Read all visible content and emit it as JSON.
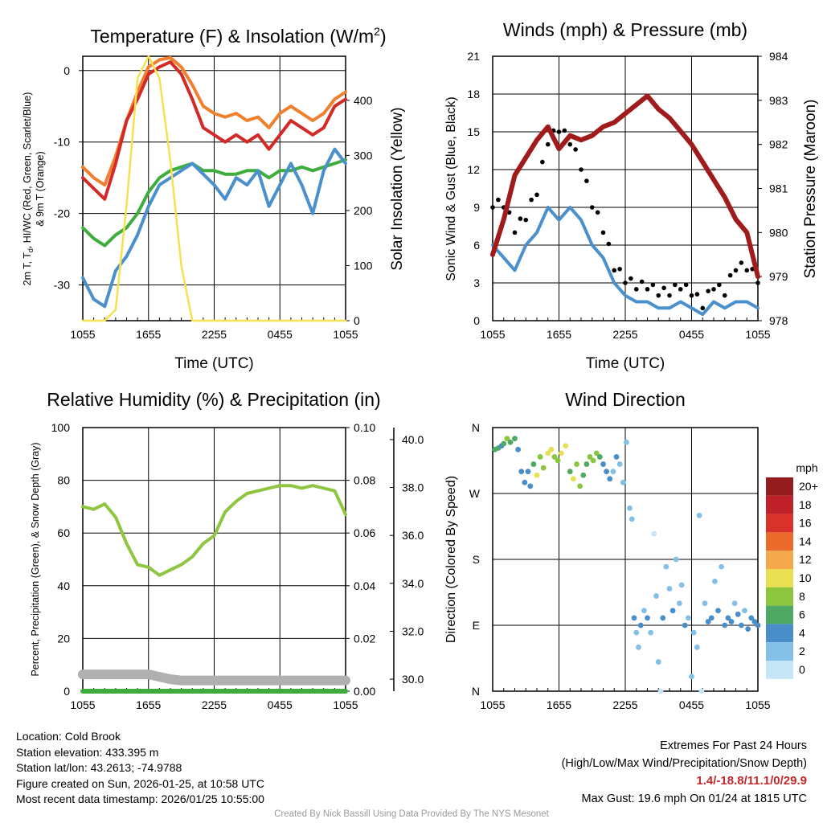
{
  "chart_data": [
    {
      "panel": "temperature",
      "type": "line",
      "title": "Temperature (F) & Insolation (W/m",
      "title_sup": "2",
      "title_end": ")",
      "xlabel": "Time (UTC)",
      "xticks": [
        "1055",
        "1655",
        "2255",
        "0455",
        "1055"
      ],
      "ylabel_left_lines": [
        "2m T, T",
        "d",
        ", HI/WC (Red, Green, Scarlet/Blue)",
        "& 9m T (Orange)"
      ],
      "ylabel_right": "Solar Insolation (Yellow)",
      "ylim": [
        -35,
        2
      ],
      "yticks": [
        0,
        -10,
        -20,
        -30
      ],
      "y2lim": [
        0,
        480
      ],
      "y2ticks": [
        0,
        100,
        200,
        300,
        400
      ],
      "x": [
        0,
        1,
        2,
        3,
        4,
        5,
        6,
        7,
        8,
        9,
        10,
        11,
        12,
        13,
        14,
        15,
        16,
        17,
        18,
        19,
        20,
        21,
        22,
        23,
        24
      ],
      "series": [
        {
          "name": "9m T",
          "color": "#f07f2e",
          "axis": "left",
          "values": [
            -13.5,
            -15,
            -16,
            -12,
            -7,
            -3,
            0.5,
            1.5,
            1.8,
            0.5,
            -2,
            -5,
            -6,
            -6.5,
            -6,
            -7,
            -6.5,
            -8,
            -6,
            -5,
            -6,
            -7,
            -6,
            -4,
            -3
          ]
        },
        {
          "name": "2m T",
          "color": "#d42a27",
          "axis": "left",
          "values": [
            -15,
            -16.5,
            -18,
            -13,
            -7,
            -4,
            -0.5,
            0.5,
            1.2,
            -0.5,
            -4,
            -8,
            -9,
            -10,
            -9,
            -10,
            -9,
            -11,
            -9,
            -7,
            -8,
            -9,
            -8,
            -5,
            -4
          ]
        },
        {
          "name": "Td",
          "color": "#3fac3e",
          "axis": "left",
          "values": [
            -22,
            -23.5,
            -24.5,
            -23,
            -22,
            -20,
            -17,
            -15,
            -14,
            -13.5,
            -13,
            -14,
            -14,
            -14.5,
            -14.5,
            -14,
            -14,
            -15,
            -14,
            -14,
            -13.5,
            -14,
            -13.5,
            -13,
            -12.5
          ]
        },
        {
          "name": "WC",
          "color": "#4a90cc",
          "axis": "left",
          "values": [
            -29,
            -32,
            -33,
            -28,
            -26,
            -23,
            -19,
            -16,
            -15,
            -14,
            -13,
            -14.5,
            -16,
            -18,
            -15,
            -16,
            -14,
            -19,
            -16,
            -13,
            -16,
            -20,
            -14,
            -11,
            -13
          ]
        },
        {
          "name": "Solar Insolation",
          "color": "#f5e150",
          "axis": "right",
          "values": [
            0,
            0,
            0,
            20,
            210,
            440,
            480,
            440,
            290,
            100,
            0,
            0,
            0,
            0,
            0,
            0,
            0,
            0,
            0,
            0,
            0,
            0,
            0,
            0,
            0
          ]
        }
      ]
    },
    {
      "panel": "winds",
      "type": "line",
      "title": "Winds (mph) & Pressure (mb)",
      "xlabel": "Time (UTC)",
      "xticks": [
        "1055",
        "1655",
        "2255",
        "0455",
        "1055"
      ],
      "ylabel_left": "Sonic Wind & Gust (Blue, Black)",
      "ylabel_right": "Station Pressure (Maroon)",
      "ylim": [
        0,
        21
      ],
      "yticks": [
        0,
        3,
        6,
        9,
        12,
        15,
        18,
        21
      ],
      "y2lim": [
        978,
        984
      ],
      "y2ticks": [
        978,
        979,
        980,
        981,
        982,
        983,
        984
      ],
      "x": [
        0,
        1,
        2,
        3,
        4,
        5,
        6,
        7,
        8,
        9,
        10,
        11,
        12,
        13,
        14,
        15,
        16,
        17,
        18,
        19,
        20,
        21,
        22,
        23,
        24
      ],
      "series": [
        {
          "name": "Sonic Wind",
          "color": "#4a90cc",
          "axis": "left",
          "values": [
            6,
            5,
            4,
            6,
            7,
            9,
            8,
            9,
            8,
            6,
            5,
            3,
            2,
            1.5,
            1.5,
            1,
            1,
            1.5,
            1,
            0.5,
            1.5,
            1,
            1.5,
            1.5,
            1
          ]
        },
        {
          "name": "Gust",
          "color": "#000000",
          "axis": "left",
          "style": "dots",
          "values": [
            9,
            9,
            7,
            8,
            10,
            14,
            15,
            14,
            12,
            9,
            7,
            4,
            3,
            2.5,
            2.5,
            2,
            2,
            2.5,
            2,
            1,
            2.5,
            2,
            4,
            4,
            3
          ]
        },
        {
          "name": "Station Pressure",
          "color": "#a01c1c",
          "axis": "right",
          "values": [
            979.5,
            980.3,
            981.3,
            981.7,
            982.1,
            982.4,
            981.9,
            982.2,
            982.1,
            982.2,
            982.4,
            982.5,
            982.7,
            982.9,
            983.1,
            982.8,
            982.6,
            982.3,
            982.0,
            981.6,
            981.2,
            980.8,
            980.3,
            980.0,
            979.0
          ]
        }
      ]
    },
    {
      "panel": "humidity",
      "type": "line",
      "title": "Relative Humidity (%) & Precipitation (in)",
      "xticks": [
        "1055",
        "1655",
        "2255",
        "0455",
        "1055"
      ],
      "ylabel_left": "Percent, Precipitation (Green), & Snow Depth (Gray)",
      "ylim": [
        0,
        100
      ],
      "yticks": [
        0,
        20,
        40,
        60,
        80,
        100
      ],
      "y2lim": [
        0,
        0.1
      ],
      "y2ticks": [
        "0.00",
        "0.02",
        "0.04",
        "0.06",
        "0.08",
        "0.10"
      ],
      "y3ticks": [
        "30.0",
        "32.0",
        "34.0",
        "36.0",
        "38.0",
        "40.0"
      ],
      "y3lim": [
        29.5,
        40.5
      ],
      "x": [
        0,
        1,
        2,
        3,
        4,
        5,
        6,
        7,
        8,
        9,
        10,
        11,
        12,
        13,
        14,
        15,
        16,
        17,
        18,
        19,
        20,
        21,
        22,
        23,
        24
      ],
      "series": [
        {
          "name": "Relative Humidity",
          "color": "#8ec641",
          "axis": "left",
          "values": [
            70,
            69,
            71,
            66,
            56,
            48,
            47,
            44,
            46,
            48,
            51,
            56,
            59,
            68,
            72,
            75,
            76,
            77,
            78,
            78,
            77,
            78,
            77,
            76,
            67
          ]
        },
        {
          "name": "Precipitation",
          "color": "#3fac3e",
          "axis": "right",
          "values": [
            0,
            0,
            0,
            0,
            0,
            0,
            0,
            0,
            0,
            0,
            0,
            0,
            0,
            0,
            0,
            0,
            0,
            0,
            0,
            0,
            0,
            0,
            0,
            0,
            0
          ]
        },
        {
          "name": "Snow Depth",
          "color": "#b0b0b0",
          "axis": "third",
          "values": [
            30.2,
            30.2,
            30.2,
            30.2,
            30.2,
            30.2,
            30.2,
            30.1,
            30.0,
            29.95,
            29.95,
            29.95,
            29.95,
            29.95,
            29.95,
            29.95,
            29.95,
            29.95,
            29.95,
            29.95,
            29.95,
            29.95,
            29.95,
            29.95,
            29.95
          ]
        }
      ]
    },
    {
      "panel": "wind_direction",
      "type": "scatter",
      "title": "Wind Direction",
      "xticks": [
        "1055",
        "1655",
        "2255",
        "0455",
        "1055"
      ],
      "ylabel": "Direction (Colored By Speed)",
      "yticks": [
        "N",
        "E",
        "S",
        "W",
        "N"
      ],
      "ylim": [
        0,
        360
      ],
      "legend_title": "mph",
      "legend_levels": [
        "0",
        "2",
        "4",
        "6",
        "8",
        "10",
        "12",
        "14",
        "16",
        "18",
        "20+"
      ],
      "legend_colors": [
        "#c6e6f7",
        "#84c0e6",
        "#4a8ec9",
        "#4fa864",
        "#8cc63e",
        "#e8df52",
        "#f5a94a",
        "#ec6a2c",
        "#d8322a",
        "#c0202a",
        "#941b1e"
      ],
      "points": [
        {
          "x": 0.2,
          "dir": 330,
          "spd": 6
        },
        {
          "x": 0.5,
          "dir": 332,
          "spd": 5
        },
        {
          "x": 0.8,
          "dir": 335,
          "spd": 4
        },
        {
          "x": 1.0,
          "dir": 338,
          "spd": 6
        },
        {
          "x": 1.3,
          "dir": 345,
          "spd": 7
        },
        {
          "x": 1.6,
          "dir": 340,
          "spd": 5
        },
        {
          "x": 2.0,
          "dir": 345,
          "spd": 6
        },
        {
          "x": 2.3,
          "dir": 330,
          "spd": 4
        },
        {
          "x": 2.6,
          "dir": 300,
          "spd": 3
        },
        {
          "x": 2.9,
          "dir": 285,
          "spd": 3
        },
        {
          "x": 3.2,
          "dir": 300,
          "spd": 4
        },
        {
          "x": 3.4,
          "dir": 280,
          "spd": 4
        },
        {
          "x": 3.7,
          "dir": 310,
          "spd": 6
        },
        {
          "x": 4.0,
          "dir": 295,
          "spd": 9
        },
        {
          "x": 4.3,
          "dir": 320,
          "spd": 8
        },
        {
          "x": 4.6,
          "dir": 305,
          "spd": 7
        },
        {
          "x": 5.0,
          "dir": 325,
          "spd": 10
        },
        {
          "x": 5.3,
          "dir": 330,
          "spd": 9
        },
        {
          "x": 5.6,
          "dir": 320,
          "spd": 8
        },
        {
          "x": 5.9,
          "dir": 315,
          "spd": 7
        },
        {
          "x": 6.2,
          "dir": 325,
          "spd": 10
        },
        {
          "x": 6.6,
          "dir": 335,
          "spd": 9
        },
        {
          "x": 7.0,
          "dir": 300,
          "spd": 6
        },
        {
          "x": 7.3,
          "dir": 290,
          "spd": 9
        },
        {
          "x": 7.6,
          "dir": 310,
          "spd": 7
        },
        {
          "x": 7.9,
          "dir": 280,
          "spd": 8
        },
        {
          "x": 8.2,
          "dir": 295,
          "spd": 6
        },
        {
          "x": 8.5,
          "dir": 310,
          "spd": 5
        },
        {
          "x": 8.8,
          "dir": 320,
          "spd": 7
        },
        {
          "x": 9.1,
          "dir": 315,
          "spd": 8
        },
        {
          "x": 9.4,
          "dir": 325,
          "spd": 7
        },
        {
          "x": 9.7,
          "dir": 320,
          "spd": 5
        },
        {
          "x": 10.0,
          "dir": 310,
          "spd": 4
        },
        {
          "x": 10.3,
          "dir": 300,
          "spd": 3
        },
        {
          "x": 10.6,
          "dir": 290,
          "spd": 4
        },
        {
          "x": 10.9,
          "dir": 300,
          "spd": 2
        },
        {
          "x": 11.2,
          "dir": 320,
          "spd": 3
        },
        {
          "x": 11.5,
          "dir": 310,
          "spd": 2
        },
        {
          "x": 11.8,
          "dir": 285,
          "spd": 2
        },
        {
          "x": 12.1,
          "dir": 340,
          "spd": 1
        },
        {
          "x": 12.4,
          "dir": 250,
          "spd": 1
        },
        {
          "x": 12.6,
          "dir": 235,
          "spd": 1
        },
        {
          "x": 12.8,
          "dir": 100,
          "spd": 3
        },
        {
          "x": 13.0,
          "dir": 80,
          "spd": 2
        },
        {
          "x": 13.2,
          "dir": 60,
          "spd": 1
        },
        {
          "x": 13.4,
          "dir": 90,
          "spd": 4
        },
        {
          "x": 13.7,
          "dir": 110,
          "spd": 2
        },
        {
          "x": 14.0,
          "dir": 100,
          "spd": 3
        },
        {
          "x": 14.3,
          "dir": 80,
          "spd": 1
        },
        {
          "x": 14.6,
          "dir": 215,
          "spd": 0
        },
        {
          "x": 14.8,
          "dir": 130,
          "spd": 2
        },
        {
          "x": 15.0,
          "dir": 40,
          "spd": 2
        },
        {
          "x": 15.2,
          "dir": 0,
          "spd": 0
        },
        {
          "x": 15.4,
          "dir": 100,
          "spd": 3
        },
        {
          "x": 15.7,
          "dir": 170,
          "spd": 1
        },
        {
          "x": 16.0,
          "dir": 140,
          "spd": 2
        },
        {
          "x": 16.3,
          "dir": 110,
          "spd": 3
        },
        {
          "x": 16.6,
          "dir": 180,
          "spd": 1
        },
        {
          "x": 16.9,
          "dir": 120,
          "spd": 2
        },
        {
          "x": 17.1,
          "dir": 145,
          "spd": 1
        },
        {
          "x": 17.4,
          "dir": 90,
          "spd": 3
        },
        {
          "x": 17.7,
          "dir": 100,
          "spd": 2
        },
        {
          "x": 18.0,
          "dir": 20,
          "spd": 1
        },
        {
          "x": 18.2,
          "dir": 80,
          "spd": 2
        },
        {
          "x": 18.5,
          "dir": 60,
          "spd": 1
        },
        {
          "x": 18.7,
          "dir": 240,
          "spd": 1
        },
        {
          "x": 18.9,
          "dir": 0,
          "spd": 0
        },
        {
          "x": 19.2,
          "dir": 120,
          "spd": 2
        },
        {
          "x": 19.5,
          "dir": 95,
          "spd": 3
        },
        {
          "x": 19.8,
          "dir": 100,
          "spd": 4
        },
        {
          "x": 20.1,
          "dir": 150,
          "spd": 2
        },
        {
          "x": 20.4,
          "dir": 110,
          "spd": 3
        },
        {
          "x": 20.7,
          "dir": 170,
          "spd": 1
        },
        {
          "x": 21.0,
          "dir": 90,
          "spd": 4
        },
        {
          "x": 21.3,
          "dir": 100,
          "spd": 3
        },
        {
          "x": 21.6,
          "dir": 95,
          "spd": 4
        },
        {
          "x": 21.9,
          "dir": 120,
          "spd": 2
        },
        {
          "x": 22.2,
          "dir": 105,
          "spd": 3
        },
        {
          "x": 22.5,
          "dir": 90,
          "spd": 4
        },
        {
          "x": 22.8,
          "dir": 110,
          "spd": 2
        },
        {
          "x": 23.1,
          "dir": 85,
          "spd": 4
        },
        {
          "x": 23.4,
          "dir": 100,
          "spd": 3
        },
        {
          "x": 23.7,
          "dir": 95,
          "spd": 4
        },
        {
          "x": 24.0,
          "dir": 90,
          "spd": 4
        }
      ]
    }
  ],
  "info": {
    "location": "Location: Cold Brook",
    "elevation": "Station elevation: 433.395 m",
    "latlon": "Station lat/lon: 43.2613; -74.9788",
    "created": "Figure created on Sun, 2026-01-25, at 10:58 UTC",
    "recent": "Most recent data timestamp: 2026/01/25 10:55:00"
  },
  "extremes": {
    "title": "Extremes For Past 24 Hours",
    "subtitle": "(High/Low/Max Wind/Precipitation/Snow Depth)",
    "values": "1.4/-18.8/11.1/0/29.9",
    "max_gust": "Max Gust: 19.6 mph On 01/24 at 1815 UTC"
  },
  "credit": "Created By Nick Bassill Using Data Provided By The NYS Mesonet"
}
